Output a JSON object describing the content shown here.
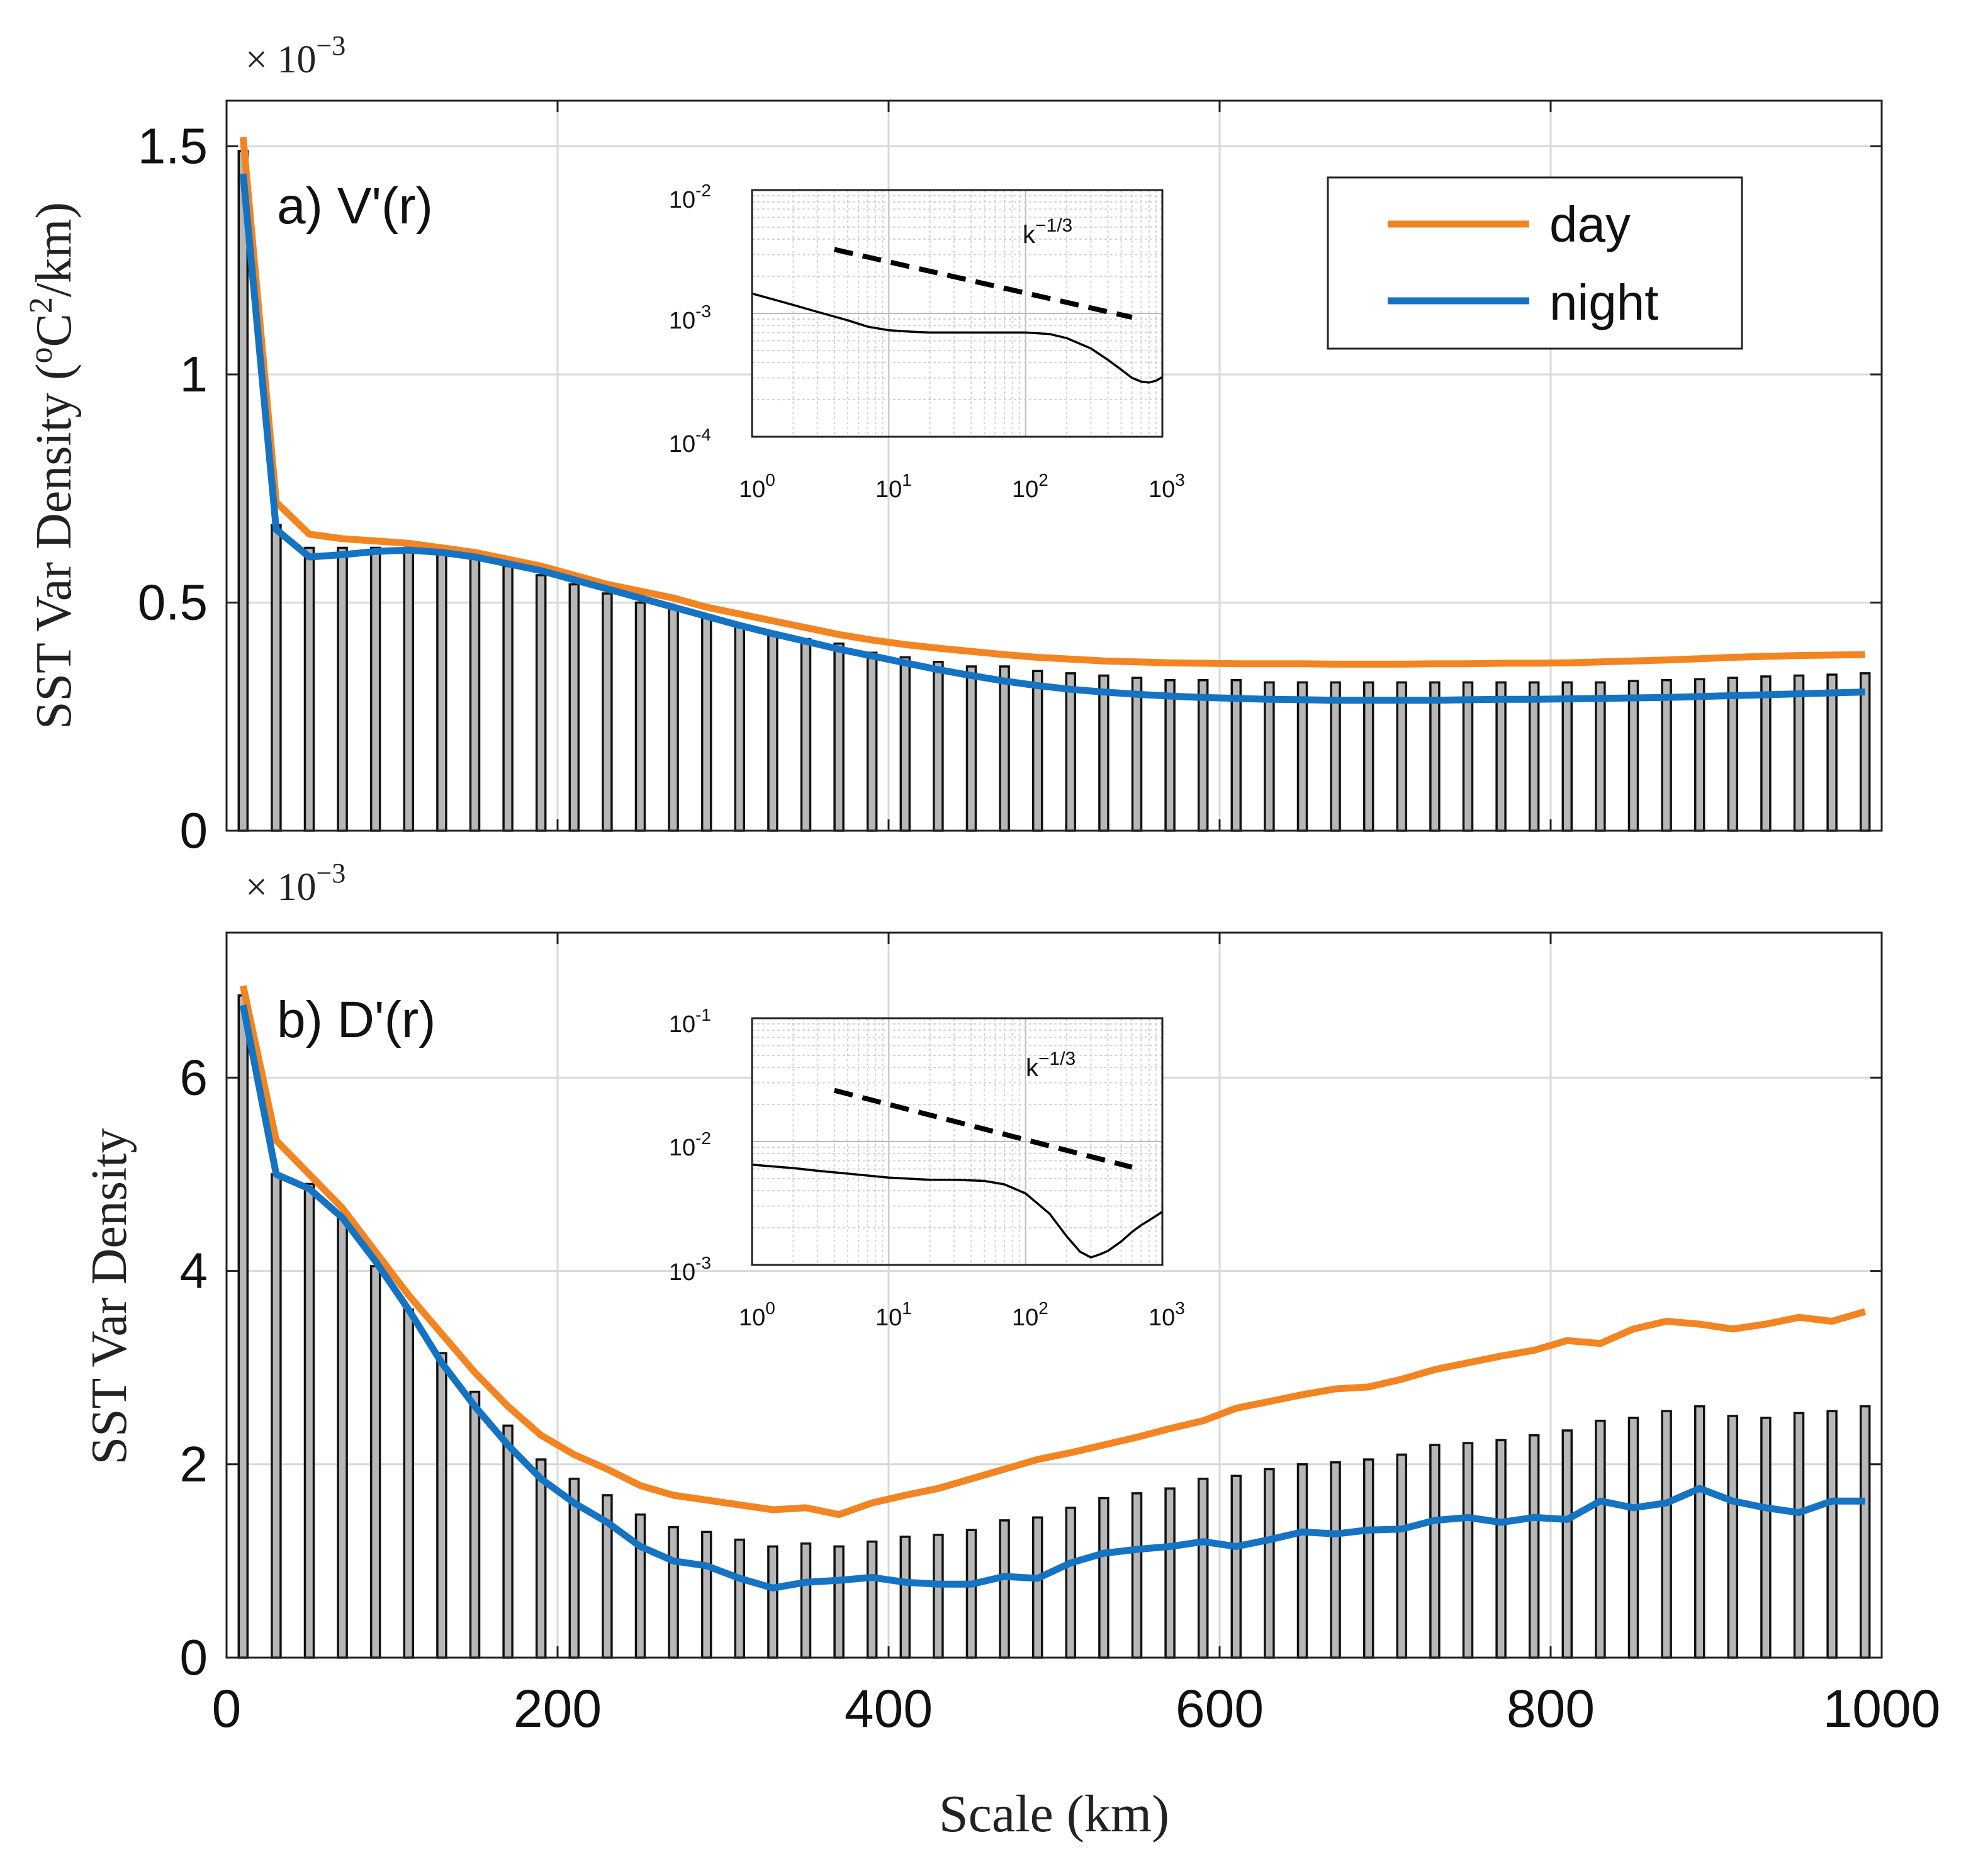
{
  "colors": {
    "day": "#f28522",
    "night": "#1473c2",
    "bar_fill": "#b7b7b7",
    "bar_edge": "#111111",
    "grid": "#d9d9d9"
  },
  "xlabel": "Scale (km)",
  "chart_data": [
    {
      "id": "a",
      "type": "bar+line",
      "panel_label": "a) V'(r)",
      "ylabel": "SST Var Density (°C²/km)",
      "ylabel_parts": {
        "main": "SST Var Density (",
        "sup_pre": "o",
        "mid": "C",
        "sup_post": "2",
        "tail": "/km)"
      },
      "exponent_base": "× 10",
      "exponent_power": "−3",
      "xlim": [
        0,
        1000
      ],
      "ylim": [
        0,
        1.6
      ],
      "xticks": [
        0,
        200,
        400,
        600,
        800,
        1000
      ],
      "xtick_labels": [
        "0",
        "200",
        "400",
        "600",
        "800",
        "1000"
      ],
      "yticks": [
        0,
        0.5,
        1,
        1.5
      ],
      "ytick_labels": [
        "0",
        "0.5",
        "1",
        "1.5"
      ],
      "bars": {
        "x": [
          10,
          30,
          50,
          70,
          90,
          110,
          130,
          150,
          170,
          190,
          210,
          230,
          250,
          270,
          290,
          310,
          330,
          350,
          370,
          390,
          410,
          430,
          450,
          470,
          490,
          510,
          530,
          550,
          570,
          590,
          610,
          630,
          650,
          670,
          690,
          710,
          730,
          750,
          770,
          790,
          810,
          830,
          850,
          870,
          890,
          910,
          930,
          950,
          970,
          990
        ],
        "values": [
          1.49,
          0.67,
          0.62,
          0.62,
          0.62,
          0.62,
          0.62,
          0.6,
          0.58,
          0.56,
          0.54,
          0.52,
          0.5,
          0.49,
          0.47,
          0.45,
          0.43,
          0.42,
          0.41,
          0.39,
          0.38,
          0.37,
          0.36,
          0.36,
          0.35,
          0.345,
          0.34,
          0.335,
          0.33,
          0.33,
          0.33,
          0.325,
          0.325,
          0.325,
          0.325,
          0.325,
          0.325,
          0.325,
          0.325,
          0.325,
          0.325,
          0.325,
          0.328,
          0.33,
          0.332,
          0.335,
          0.338,
          0.34,
          0.342,
          0.345
        ]
      },
      "series": [
        {
          "name": "day",
          "x": [
            10,
            30,
            50,
            70,
            90,
            110,
            130,
            150,
            170,
            190,
            210,
            230,
            250,
            270,
            290,
            310,
            330,
            350,
            370,
            390,
            410,
            430,
            450,
            470,
            490,
            510,
            530,
            550,
            570,
            590,
            610,
            630,
            650,
            670,
            690,
            710,
            730,
            750,
            770,
            790,
            810,
            830,
            850,
            870,
            890,
            910,
            930,
            950,
            970,
            990
          ],
          "values": [
            1.52,
            0.72,
            0.65,
            0.64,
            0.635,
            0.63,
            0.62,
            0.61,
            0.595,
            0.58,
            0.56,
            0.54,
            0.525,
            0.51,
            0.49,
            0.475,
            0.46,
            0.445,
            0.43,
            0.418,
            0.408,
            0.4,
            0.393,
            0.386,
            0.38,
            0.376,
            0.372,
            0.37,
            0.368,
            0.367,
            0.366,
            0.366,
            0.366,
            0.365,
            0.365,
            0.365,
            0.366,
            0.366,
            0.367,
            0.367,
            0.368,
            0.37,
            0.372,
            0.374,
            0.377,
            0.38,
            0.382,
            0.384,
            0.385,
            0.386
          ]
        },
        {
          "name": "night",
          "x": [
            10,
            30,
            50,
            70,
            90,
            110,
            130,
            150,
            170,
            190,
            210,
            230,
            250,
            270,
            290,
            310,
            330,
            350,
            370,
            390,
            410,
            430,
            450,
            470,
            490,
            510,
            530,
            550,
            570,
            590,
            610,
            630,
            650,
            670,
            690,
            710,
            730,
            750,
            770,
            790,
            810,
            830,
            850,
            870,
            890,
            910,
            930,
            950,
            970,
            990
          ],
          "values": [
            1.44,
            0.66,
            0.6,
            0.605,
            0.612,
            0.615,
            0.61,
            0.6,
            0.585,
            0.57,
            0.55,
            0.53,
            0.51,
            0.49,
            0.47,
            0.45,
            0.432,
            0.415,
            0.398,
            0.383,
            0.368,
            0.353,
            0.34,
            0.328,
            0.318,
            0.31,
            0.304,
            0.299,
            0.295,
            0.292,
            0.29,
            0.288,
            0.287,
            0.286,
            0.286,
            0.286,
            0.286,
            0.287,
            0.288,
            0.288,
            0.289,
            0.29,
            0.291,
            0.292,
            0.294,
            0.296,
            0.298,
            0.3,
            0.302,
            0.304
          ]
        }
      ],
      "legend": {
        "position": "top-right",
        "entries": [
          "day",
          "night"
        ]
      },
      "inset": {
        "type": "line-loglog",
        "xlim": [
          1,
          1000
        ],
        "ylim": [
          0.0001,
          0.01
        ],
        "xtick_mantissa": [
          "10",
          "10",
          "10",
          "10"
        ],
        "xtick_exponents": [
          "0",
          "1",
          "2",
          "3"
        ],
        "ytick_mantissa": [
          "10",
          "10",
          "10"
        ],
        "ytick_exponents": [
          "-2",
          "-3",
          "-4"
        ],
        "reference_label_base": "k",
        "reference_label_exp": "−1/3",
        "reference_line": {
          "x": [
            4,
            600
          ],
          "y": [
            0.0033,
            0.00093
          ]
        },
        "curve": {
          "x": [
            1,
            1.5,
            2,
            3,
            5,
            7,
            10,
            15,
            20,
            30,
            50,
            70,
            100,
            150,
            200,
            300,
            400,
            500,
            600,
            700,
            800,
            900,
            1000
          ],
          "y": [
            0.00145,
            0.00128,
            0.00117,
            0.00103,
            0.00088,
            0.00078,
            0.00073,
            0.00071,
            0.0007,
            0.0007,
            0.0007,
            0.0007,
            0.0007,
            0.00068,
            0.00063,
            0.00052,
            0.00042,
            0.00035,
            0.0003,
            0.00028,
            0.000275,
            0.000285,
            0.000305
          ]
        }
      }
    },
    {
      "id": "b",
      "type": "bar+line",
      "panel_label": "b) D'(r)",
      "ylabel": "SST Var Density",
      "exponent_base": "× 10",
      "exponent_power": "−3",
      "xlim": [
        0,
        1000
      ],
      "ylim": [
        0,
        7.5
      ],
      "xticks": [
        0,
        200,
        400,
        600,
        800,
        1000
      ],
      "xtick_labels": [
        "0",
        "200",
        "400",
        "600",
        "800",
        "1000"
      ],
      "yticks": [
        0,
        2,
        4,
        6
      ],
      "ytick_labels": [
        "0",
        "2",
        "4",
        "6"
      ],
      "bars": {
        "x": [
          10,
          30,
          50,
          70,
          90,
          110,
          130,
          150,
          170,
          190,
          210,
          230,
          250,
          270,
          290,
          310,
          330,
          350,
          370,
          390,
          410,
          430,
          450,
          470,
          490,
          510,
          530,
          550,
          570,
          590,
          610,
          630,
          650,
          670,
          690,
          710,
          730,
          750,
          770,
          790,
          810,
          830,
          850,
          870,
          890,
          910,
          930,
          950,
          970,
          990
        ],
        "values": [
          6.85,
          5.0,
          4.9,
          4.55,
          4.05,
          3.6,
          3.15,
          2.75,
          2.4,
          2.05,
          1.85,
          1.68,
          1.48,
          1.35,
          1.3,
          1.22,
          1.15,
          1.18,
          1.15,
          1.2,
          1.25,
          1.27,
          1.32,
          1.42,
          1.45,
          1.55,
          1.65,
          1.7,
          1.75,
          1.85,
          1.88,
          1.95,
          2.0,
          2.02,
          2.05,
          2.1,
          2.2,
          2.22,
          2.25,
          2.3,
          2.35,
          2.45,
          2.48,
          2.55,
          2.6,
          2.5,
          2.48,
          2.53,
          2.55,
          2.6
        ]
      },
      "series": [
        {
          "name": "day",
          "x": [
            10,
            30,
            50,
            70,
            90,
            110,
            130,
            150,
            170,
            190,
            210,
            230,
            250,
            270,
            290,
            310,
            330,
            350,
            370,
            390,
            410,
            430,
            450,
            470,
            490,
            510,
            530,
            550,
            570,
            590,
            610,
            630,
            650,
            670,
            690,
            710,
            730,
            750,
            770,
            790,
            810,
            830,
            850,
            870,
            890,
            910,
            930,
            950,
            970,
            990
          ],
          "values": [
            6.95,
            5.35,
            5.0,
            4.65,
            4.2,
            3.75,
            3.35,
            2.95,
            2.6,
            2.3,
            2.1,
            1.95,
            1.78,
            1.68,
            1.63,
            1.58,
            1.53,
            1.55,
            1.48,
            1.6,
            1.68,
            1.75,
            1.85,
            1.95,
            2.05,
            2.12,
            2.2,
            2.28,
            2.37,
            2.45,
            2.58,
            2.65,
            2.72,
            2.78,
            2.8,
            2.88,
            2.98,
            3.05,
            3.12,
            3.18,
            3.28,
            3.25,
            3.4,
            3.48,
            3.45,
            3.4,
            3.45,
            3.52,
            3.48,
            3.58
          ]
        },
        {
          "name": "night",
          "x": [
            10,
            30,
            50,
            70,
            90,
            110,
            130,
            150,
            170,
            190,
            210,
            230,
            250,
            270,
            290,
            310,
            330,
            350,
            370,
            390,
            410,
            430,
            450,
            470,
            490,
            510,
            530,
            550,
            570,
            590,
            610,
            630,
            650,
            670,
            690,
            710,
            730,
            750,
            770,
            790,
            810,
            830,
            850,
            870,
            890,
            910,
            930,
            950,
            970,
            990
          ],
          "values": [
            6.75,
            5.0,
            4.85,
            4.55,
            4.1,
            3.6,
            3.05,
            2.6,
            2.2,
            1.85,
            1.6,
            1.4,
            1.15,
            1.0,
            0.95,
            0.82,
            0.72,
            0.78,
            0.8,
            0.83,
            0.78,
            0.76,
            0.76,
            0.84,
            0.82,
            0.98,
            1.08,
            1.12,
            1.15,
            1.2,
            1.15,
            1.22,
            1.3,
            1.28,
            1.32,
            1.33,
            1.42,
            1.45,
            1.4,
            1.45,
            1.43,
            1.62,
            1.55,
            1.6,
            1.75,
            1.62,
            1.55,
            1.5,
            1.62,
            1.62
          ]
        }
      ],
      "inset": {
        "type": "line-loglog",
        "xlim": [
          1,
          1000
        ],
        "ylim": [
          0.001,
          0.1
        ],
        "xtick_mantissa": [
          "10",
          "10",
          "10",
          "10"
        ],
        "xtick_exponents": [
          "0",
          "1",
          "2",
          "3"
        ],
        "ytick_mantissa": [
          "10",
          "10",
          "10"
        ],
        "ytick_exponents": [
          "-1",
          "-2",
          "-3"
        ],
        "reference_label_base": "k",
        "reference_label_exp": "−1/3",
        "reference_line": {
          "x": [
            4,
            600
          ],
          "y": [
            0.026,
            0.0062
          ]
        },
        "curve": {
          "x": [
            1,
            2,
            3,
            5,
            10,
            20,
            30,
            50,
            70,
            100,
            150,
            200,
            250,
            300,
            350,
            400,
            500,
            600,
            700,
            800,
            900,
            1000
          ],
          "y": [
            0.0065,
            0.0061,
            0.0058,
            0.0055,
            0.0051,
            0.0049,
            0.0049,
            0.0048,
            0.0045,
            0.0038,
            0.0026,
            0.0017,
            0.00128,
            0.00115,
            0.00122,
            0.0013,
            0.00155,
            0.00185,
            0.0021,
            0.0023,
            0.0025,
            0.0027
          ]
        }
      }
    }
  ]
}
